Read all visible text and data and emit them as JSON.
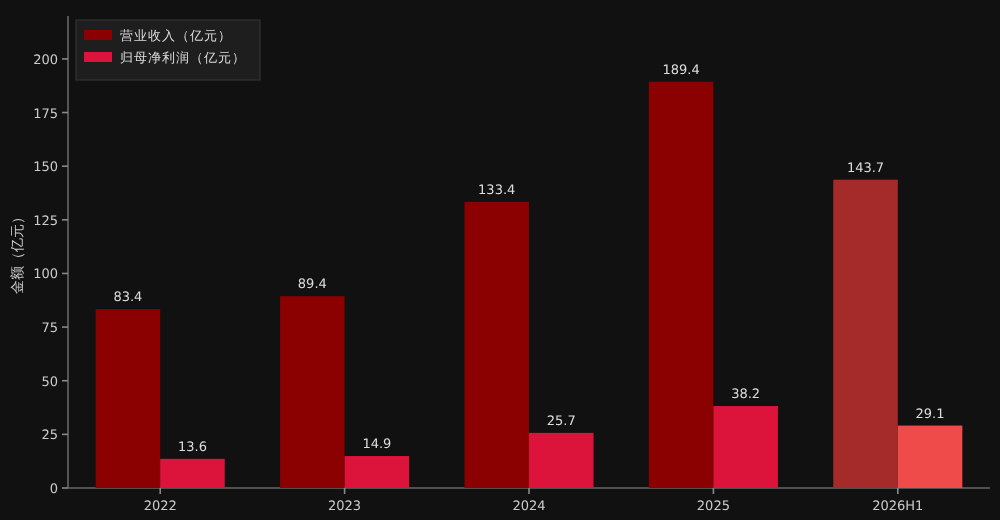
{
  "chart_data": {
    "type": "bar",
    "ylabel": "金额（亿元）",
    "categories": [
      "2022",
      "2023",
      "2024",
      "2025",
      "2026H1"
    ],
    "series": [
      {
        "name": "营业收入（亿元）",
        "color": "#8b0000",
        "colors": [
          "#8b0000",
          "#8b0000",
          "#8b0000",
          "#8b0000",
          "#a52a2a"
        ],
        "values": [
          83.4,
          89.4,
          133.4,
          189.4,
          143.7
        ]
      },
      {
        "name": "归母净利润（亿元）",
        "color": "#dc143c",
        "colors": [
          "#dc143c",
          "#dc143c",
          "#dc143c",
          "#dc143c",
          "#f04b4b"
        ],
        "values": [
          13.6,
          14.9,
          25.7,
          38.2,
          29.1
        ]
      }
    ],
    "ylim": [
      0,
      220
    ],
    "yticks": [
      0,
      25,
      50,
      75,
      100,
      125,
      150,
      175,
      200
    ],
    "data_labels": true,
    "legend": "top left"
  }
}
